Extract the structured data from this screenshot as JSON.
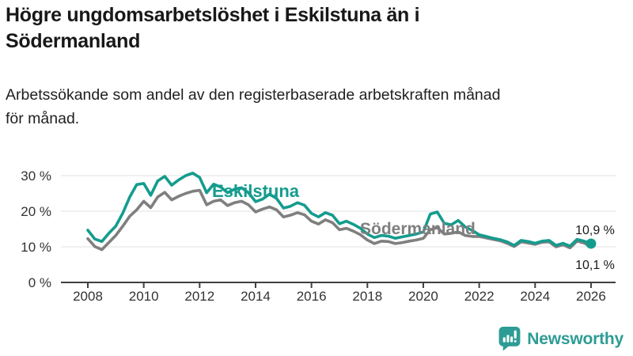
{
  "header": {
    "title_lines": [
      "Högre ungdomsarbetslöshet i Eskilstuna än i",
      "Södermanland"
    ],
    "subtitle_lines": [
      "Arbetssökande som andel av den registerbaserade arbetskraften månad",
      "för månad."
    ]
  },
  "chart_data": {
    "type": "line",
    "title": "Högre ungdomsarbetslöshet i Eskilstuna än i Södermanland",
    "subtitle": "Arbetssökande som andel av den registerbaserade arbetskraften månad för månad.",
    "x_start": 2008.0,
    "x_step": 0.25,
    "xlim": [
      2007.5,
      2026.9
    ],
    "ylim": [
      0,
      33
    ],
    "x_ticks": [
      2008,
      2010,
      2012,
      2014,
      2016,
      2018,
      2020,
      2022,
      2024,
      2026
    ],
    "y_ticks": [
      0,
      10,
      20,
      30
    ],
    "y_tick_suffix": " %",
    "grid": "horizontal",
    "legend_position": "inline-labels",
    "axis_color": "#3f3f3f",
    "grid_color": "#e1e1e1",
    "series": [
      {
        "name": "Eskilstuna",
        "color": "#149c8e",
        "end_dot": true,
        "end_value": 10.9,
        "end_label": "10,9 %",
        "values": [
          14.7,
          12.2,
          11.5,
          13.8,
          15.8,
          19.5,
          24.0,
          27.5,
          27.8,
          24.5,
          28.5,
          29.8,
          27.3,
          28.8,
          30.0,
          30.7,
          29.5,
          25.2,
          27.6,
          26.8,
          25.2,
          26.2,
          26.6,
          25.2,
          22.7,
          23.4,
          24.8,
          23.6,
          20.9,
          21.4,
          22.4,
          21.7,
          19.4,
          18.4,
          19.6,
          18.9,
          16.5,
          17.2,
          16.3,
          15.2,
          13.6,
          12.6,
          13.2,
          13.0,
          12.4,
          12.8,
          13.2,
          13.6,
          14.2,
          19.2,
          19.8,
          16.6,
          16.2,
          17.4,
          15.6,
          14.6,
          13.4,
          12.9,
          12.4,
          12.0,
          11.4,
          10.4,
          11.8,
          11.5,
          11.0,
          11.6,
          11.8,
          10.4,
          11.0,
          10.2,
          12.1,
          11.6,
          10.9
        ]
      },
      {
        "name": "Södermanland",
        "color": "#7f7f7f",
        "end_dot": false,
        "end_value": 10.1,
        "end_label": "10,1 %",
        "values": [
          12.3,
          10.1,
          9.2,
          11.2,
          13.2,
          15.8,
          18.6,
          20.4,
          22.8,
          21.0,
          24.0,
          25.3,
          23.2,
          24.2,
          25.0,
          25.6,
          25.9,
          21.8,
          22.8,
          23.2,
          21.6,
          22.4,
          22.8,
          21.8,
          19.8,
          20.6,
          21.2,
          20.4,
          18.4,
          18.9,
          19.6,
          19.0,
          17.2,
          16.4,
          17.6,
          16.8,
          14.8,
          15.2,
          14.4,
          13.4,
          11.9,
          10.9,
          11.6,
          11.5,
          10.9,
          11.2,
          11.6,
          11.9,
          12.4,
          14.8,
          15.4,
          13.6,
          13.8,
          14.2,
          13.2,
          12.9,
          12.9,
          12.5,
          12.1,
          11.7,
          11.0,
          10.1,
          11.4,
          11.1,
          10.7,
          11.3,
          11.4,
          10.0,
          10.6,
          9.7,
          11.6,
          11.1,
          10.1
        ]
      }
    ]
  },
  "footer": {
    "brand": "Newsworthy",
    "brand_color": "#2d9c94",
    "logo_icon": "bar-chart-speech-bubble"
  }
}
